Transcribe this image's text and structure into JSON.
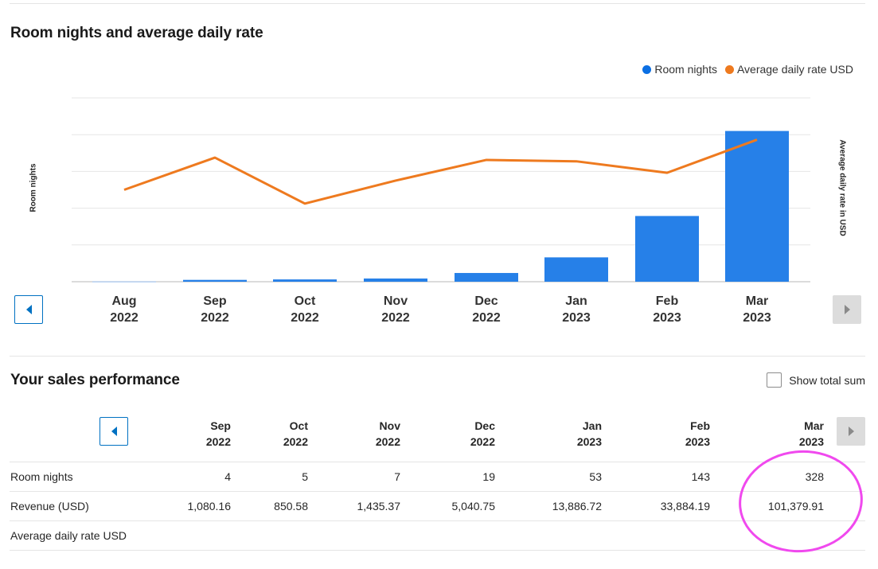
{
  "chart_section": {
    "title": "Room nights and average daily rate",
    "legend": [
      {
        "label": "Room nights",
        "color": "#0b6fe3"
      },
      {
        "label": "Average daily rate USD",
        "color": "#ee7a1f"
      }
    ],
    "y_left_title": "Room nights",
    "y_right_title": "Average daily rate in USD",
    "prev_icon": "chevron-left-icon",
    "next_icon": "chevron-right-icon"
  },
  "chart_data": {
    "type": "bar",
    "categories": [
      [
        "Aug",
        "2022"
      ],
      [
        "Sep",
        "2022"
      ],
      [
        "Oct",
        "2022"
      ],
      [
        "Nov",
        "2022"
      ],
      [
        "Dec",
        "2022"
      ],
      [
        "Jan",
        "2023"
      ],
      [
        "Feb",
        "2023"
      ],
      [
        "Mar",
        "2023"
      ]
    ],
    "series": [
      {
        "name": "Room nights",
        "type": "bar",
        "axis": "left",
        "color": "#2680e8",
        "values": [
          1,
          4,
          5,
          7,
          19,
          53,
          143,
          328
        ]
      },
      {
        "name": "Average daily rate USD",
        "type": "line",
        "axis": "right",
        "color": "#ee7a1f",
        "values": [
          200,
          270,
          170,
          220,
          265,
          262,
          237,
          309
        ]
      }
    ],
    "ylim_left": [
      0,
      400
    ],
    "ylim_right": [
      0,
      400
    ],
    "grid": true,
    "legend_position": "top-right"
  },
  "sales_section": {
    "title": "Your sales performance",
    "show_total_label": "Show total sum",
    "columns": [
      {
        "month": "Sep",
        "year": "2022"
      },
      {
        "month": "Oct",
        "year": "2022"
      },
      {
        "month": "Nov",
        "year": "2022"
      },
      {
        "month": "Dec",
        "year": "2022"
      },
      {
        "month": "Jan",
        "year": "2023"
      },
      {
        "month": "Feb",
        "year": "2023"
      },
      {
        "month": "Mar",
        "year": "2023"
      }
    ],
    "rows": [
      {
        "label": "Room nights",
        "values": [
          "4",
          "5",
          "7",
          "19",
          "53",
          "143",
          "328"
        ]
      },
      {
        "label": "Revenue (USD)",
        "values": [
          "1,080.16",
          "850.58",
          "1,435.37",
          "5,040.75",
          "13,886.72",
          "33,884.19",
          "101,379.91"
        ]
      },
      {
        "label": "Average daily rate USD",
        "values": [
          "",
          "",
          "",
          "",
          "",
          "",
          ""
        ]
      }
    ],
    "highlight_color": "#f049ee"
  }
}
